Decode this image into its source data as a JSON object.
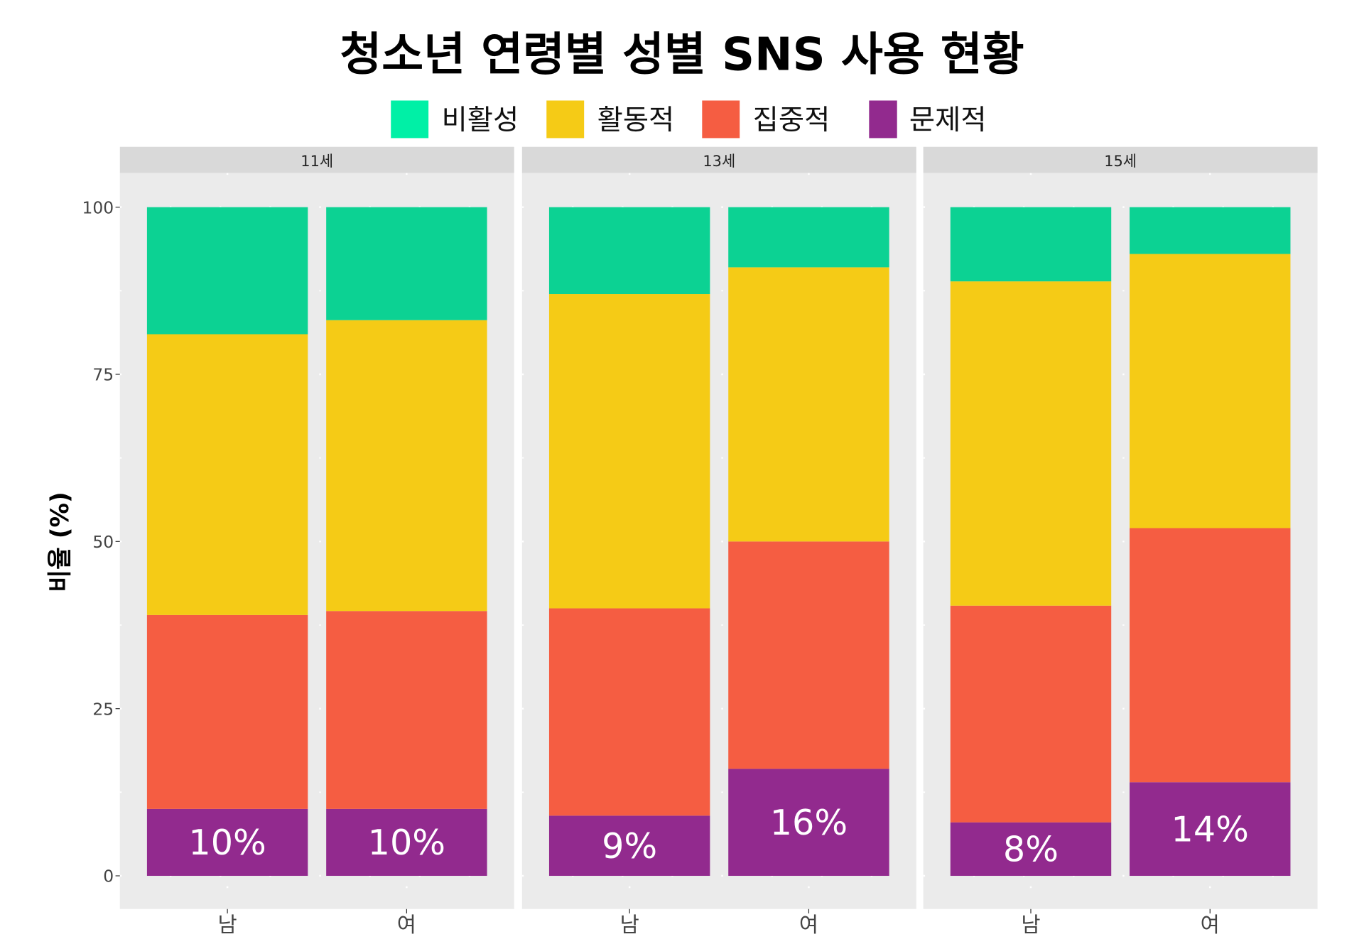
{
  "chart_data": {
    "type": "bar",
    "stacked": true,
    "title": "청소년 연령별 성별 SNS 사용 현황",
    "ylabel": "비율 (%)",
    "xlabel": "",
    "ylim": [
      0,
      100
    ],
    "yticks": [
      0,
      25,
      50,
      75,
      100
    ],
    "grid": true,
    "legend_position": "top",
    "legend": [
      {
        "name": "비활성",
        "color": "#0CD293",
        "legend_color": "#00F0A6"
      },
      {
        "name": "활동적",
        "color": "#F5CB16"
      },
      {
        "name": "집중적",
        "color": "#F55D42"
      },
      {
        "name": "문제적",
        "color": "#922A8E"
      }
    ],
    "stack_order_bottom_to_top": [
      "문제적",
      "집중적",
      "활동적",
      "비활성"
    ],
    "facets": [
      {
        "label": "11세",
        "bars": [
          {
            "category": "남",
            "values": {
              "문제적": 10,
              "집중적": 29,
              "활동적": 42,
              "비활성": 19
            },
            "data_label": "10%"
          },
          {
            "category": "여",
            "values": {
              "문제적": 10,
              "집중적": 29.6,
              "활동적": 43.5,
              "비활성": 16.9
            },
            "data_label": "10%"
          }
        ]
      },
      {
        "label": "13세",
        "bars": [
          {
            "category": "남",
            "values": {
              "문제적": 9,
              "집중적": 31,
              "활동적": 47,
              "비활성": 13
            },
            "data_label": "9%"
          },
          {
            "category": "여",
            "values": {
              "문제적": 16,
              "집중적": 34,
              "활동적": 41,
              "비활성": 9
            },
            "data_label": "16%"
          }
        ]
      },
      {
        "label": "15세",
        "bars": [
          {
            "category": "남",
            "values": {
              "문제적": 8,
              "집중적": 32.4,
              "활동적": 48.5,
              "비활성": 11.1
            },
            "data_label": "8%"
          },
          {
            "category": "여",
            "values": {
              "문제적": 14,
              "집중적": 38,
              "활동적": 41,
              "비활성": 7
            },
            "data_label": "14%"
          }
        ]
      }
    ]
  }
}
